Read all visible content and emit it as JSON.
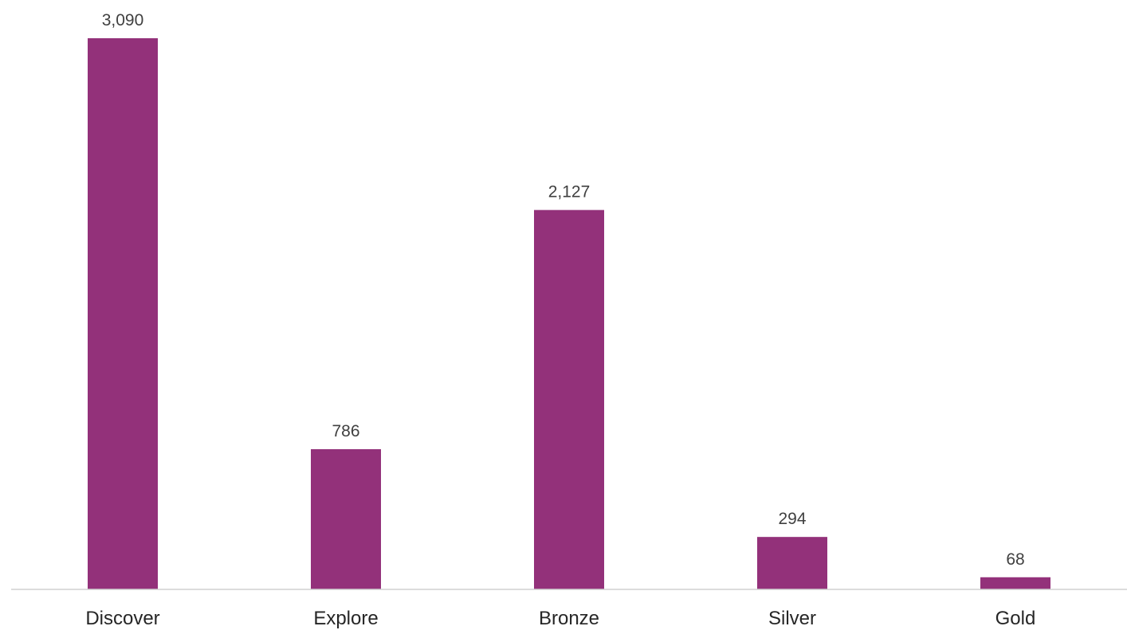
{
  "chart_data": {
    "type": "bar",
    "categories": [
      "Discover",
      "Explore",
      "Bronze",
      "Silver",
      "Gold"
    ],
    "values": [
      3090,
      786,
      2127,
      294,
      68
    ],
    "value_labels": [
      "3,090",
      "786",
      "2,127",
      "294",
      "68"
    ],
    "title": "",
    "xlabel": "",
    "ylabel": "",
    "ylim": [
      0,
      3090
    ],
    "grid": false,
    "legend": "none",
    "bar_color": "#93317a",
    "axis_color": "#d0d0d0"
  }
}
